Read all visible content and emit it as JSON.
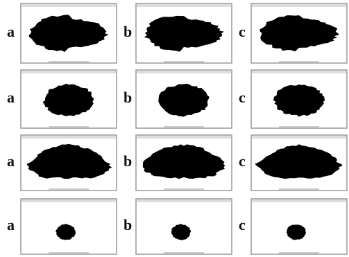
{
  "rows": [
    {
      "labels": [
        "a",
        "b",
        "c"
      ]
    },
    {
      "labels": [
        "a",
        "b",
        "c"
      ]
    },
    {
      "labels": [
        "a",
        "b",
        "c"
      ]
    },
    {
      "labels": [
        "a",
        "b",
        "c"
      ]
    }
  ]
}
